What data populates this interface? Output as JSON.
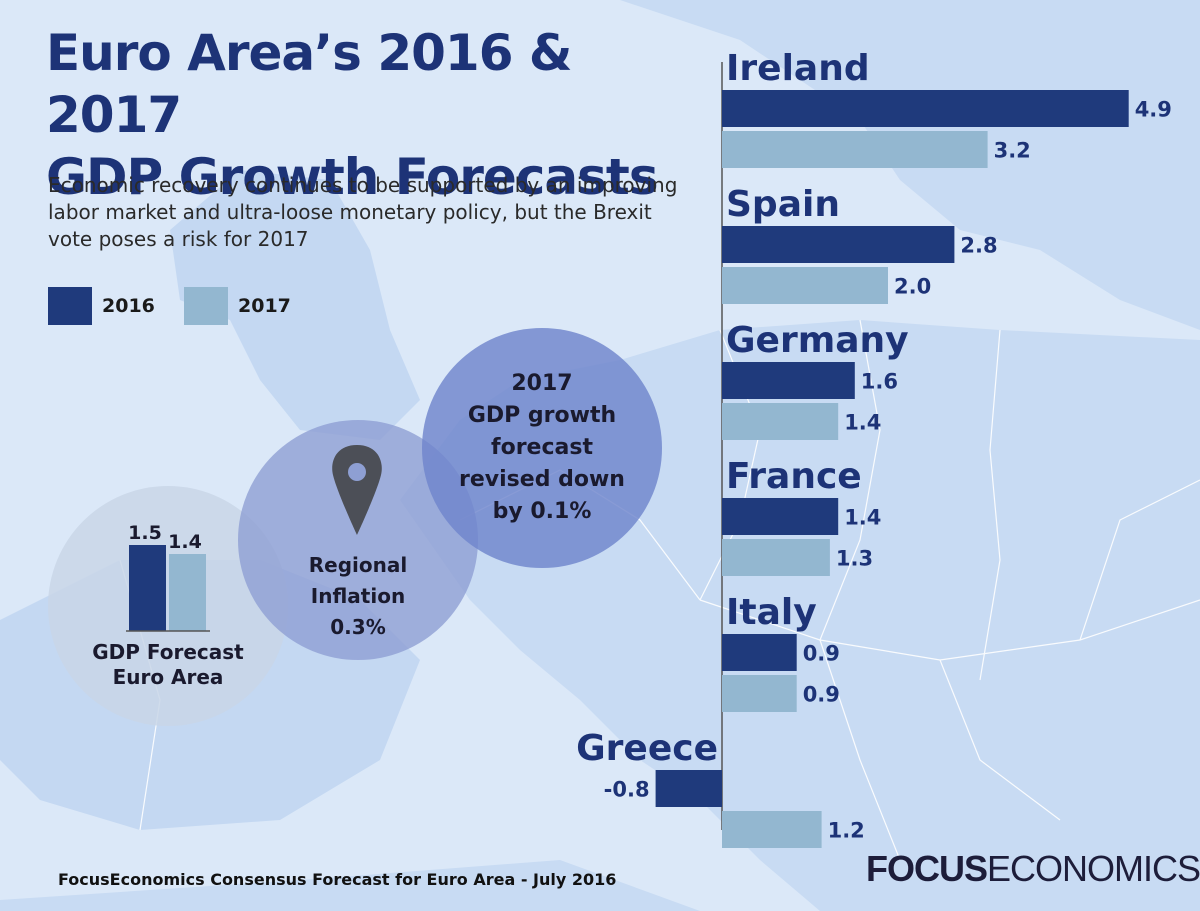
{
  "header": {
    "title_line1": "Euro Area’s 2016 & 2017",
    "title_line2": "GDP Growth Forecasts",
    "subtitle": "Economic recovery continues to be supported by an improving labor market and ultra-loose monetary policy, but the Brexit vote poses a risk for 2017"
  },
  "legend": {
    "items": [
      {
        "label": "2016",
        "color": "#1f3a7c"
      },
      {
        "label": "2017",
        "color": "#93b7d0"
      }
    ]
  },
  "bubbles": {
    "gdp_euro_area": {
      "label": "GDP Forecast Euro Area",
      "line1": "GDP Forecast",
      "line2": "Euro Area",
      "value_2016": "1.5",
      "value_2017": "1.4"
    },
    "inflation": {
      "line1": "Regional",
      "line2": "Inflation",
      "line3": "0.3%",
      "icon": "map-pin-icon"
    },
    "revision": {
      "line1": "2017",
      "line2": "GDP growth",
      "line3": "forecast",
      "line4": "revised down",
      "line5": "by 0.1%"
    }
  },
  "chart_data": {
    "type": "bar",
    "orientation": "horizontal",
    "categories": [
      "Ireland",
      "Spain",
      "Germany",
      "France",
      "Italy",
      "Greece"
    ],
    "series": [
      {
        "name": "2016",
        "values": [
          4.9,
          2.8,
          1.6,
          1.4,
          0.9,
          -0.8
        ]
      },
      {
        "name": "2017",
        "values": [
          3.2,
          2.0,
          1.4,
          1.3,
          0.9,
          1.2
        ]
      }
    ],
    "value_labels": {
      "2016": [
        "4.9",
        "2.8",
        "1.6",
        "1.4",
        "0.9",
        "-0.8"
      ],
      "2017": [
        "3.2",
        "2.0",
        "1.4",
        "1.3",
        "0.9",
        "1.2"
      ]
    },
    "colors": [
      "#1f3a7c",
      "#93b7d0"
    ],
    "title": "Euro Area’s 2016 & 2017 GDP Growth Forecasts",
    "grid": false,
    "legend_position": "top-left"
  },
  "footer": {
    "source": "FocusEconomics Consensus Forecast for Euro Area - July 2016",
    "brand_bold": "FOCUS",
    "brand_light": "ECONOMICS"
  }
}
